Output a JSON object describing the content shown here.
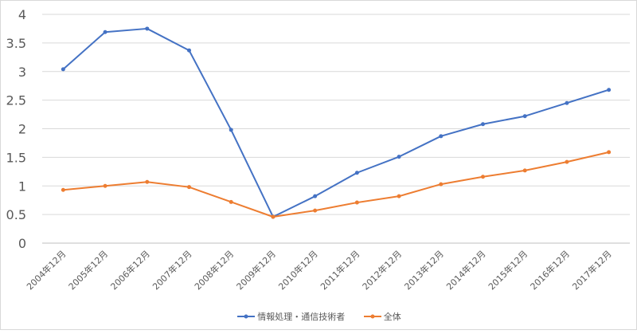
{
  "chart_data": {
    "type": "line",
    "categories": [
      "2004年12月",
      "2005年12月",
      "2006年12月",
      "2007年12月",
      "2008年12月",
      "2009年12月",
      "2010年12月",
      "2011年12月",
      "2012年12月",
      "2013年12月",
      "2014年12月",
      "2015年12月",
      "2016年12月",
      "2017年12月"
    ],
    "series": [
      {
        "name": "情報処理・通信技術者",
        "color": "#4472c4",
        "values": [
          3.04,
          3.69,
          3.75,
          3.37,
          1.98,
          0.46,
          0.82,
          1.23,
          1.51,
          1.87,
          2.08,
          2.22,
          2.45,
          2.68
        ]
      },
      {
        "name": "全体",
        "color": "#ed7d31",
        "values": [
          0.93,
          1.0,
          1.07,
          0.98,
          0.72,
          0.46,
          0.57,
          0.71,
          0.82,
          1.03,
          1.16,
          1.27,
          1.42,
          1.59
        ]
      }
    ],
    "yticks": [
      "0",
      "0.5",
      "1",
      "1.5",
      "2",
      "2.5",
      "3",
      "3.5",
      "4"
    ],
    "ylim": [
      0,
      4
    ],
    "grid": true,
    "legend": "bottom",
    "title": "",
    "xlabel": "",
    "ylabel": ""
  }
}
